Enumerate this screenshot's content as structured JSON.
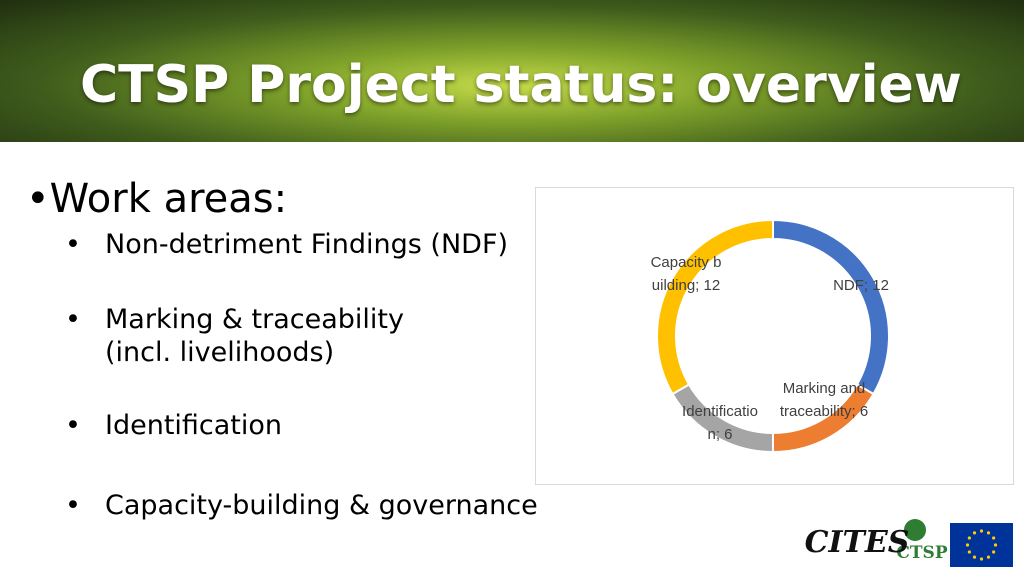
{
  "header": {
    "title": "CTSP Project status: overview"
  },
  "body": {
    "heading": "Work areas:",
    "bullets": [
      [
        "Non-detriment Findings (NDF)"
      ],
      [
        "Marking & traceability",
        "(incl. livelihoods)"
      ],
      [
        "Identification"
      ],
      [
        "Capacity-building & governance"
      ]
    ]
  },
  "chart_data": {
    "type": "donut",
    "categories": [
      "NDF",
      "Marking and traceability",
      "Identification",
      "Capacity building"
    ],
    "values": [
      12,
      6,
      6,
      12
    ],
    "value_labels": [
      "NDF; 12",
      "Marking and traceability; 6",
      "Identification; 6",
      "Capacity building; 12"
    ],
    "colors": [
      "#4472c4",
      "#ed7d31",
      "#a5a5a5",
      "#ffc000"
    ]
  },
  "logos": {
    "cites": "CITES",
    "ctsp": "CTSP"
  }
}
